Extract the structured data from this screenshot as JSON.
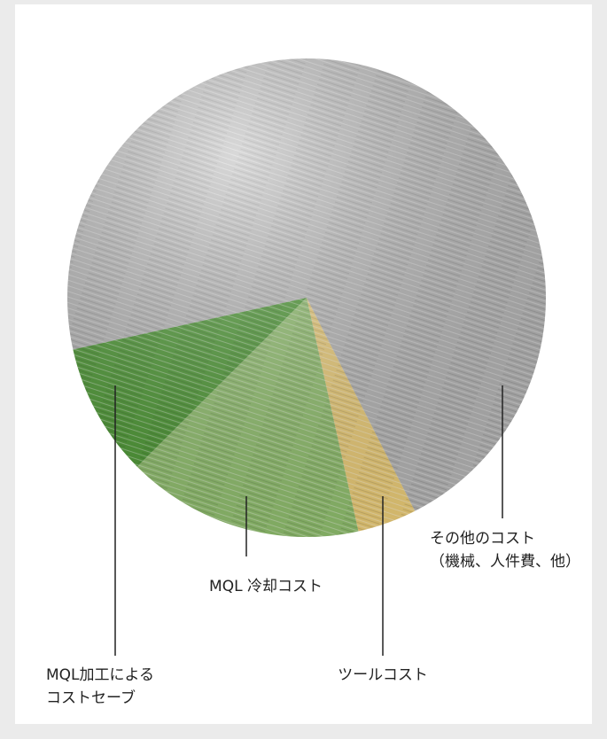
{
  "chart_data": {
    "type": "pie",
    "categories": [
      [
        "その他のコスト",
        "（機械、人件費、他）"
      ],
      [
        "ツールコスト"
      ],
      [
        "MQL 冷却コスト"
      ],
      [
        "MQL加工による",
        "コストセーブ"
      ]
    ],
    "values": [
      71,
      4,
      16,
      9
    ],
    "colors": [
      "#b9b9b9",
      "#f2d27a",
      "#93c46f",
      "#4c9b32"
    ]
  }
}
